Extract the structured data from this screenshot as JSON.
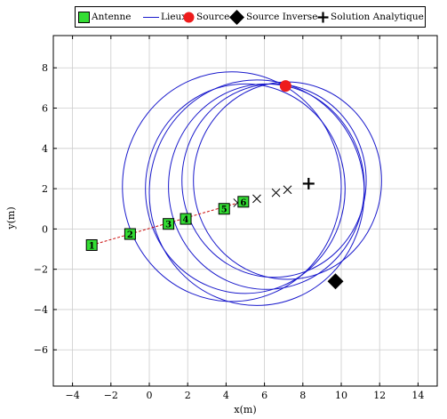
{
  "chart_data": {
    "type": "scatter",
    "title": "",
    "xlabel": "x(m)",
    "ylabel": "y(m)",
    "xlim": [
      -5.0,
      15.0
    ],
    "ylim": [
      -7.8,
      9.6
    ],
    "xticks": [
      -4,
      -2,
      0,
      2,
      4,
      6,
      8,
      10,
      12,
      14
    ],
    "yticks": [
      -6,
      -4,
      -2,
      0,
      2,
      4,
      6,
      8
    ],
    "xtick_labels": [
      "−4",
      "−2",
      "0",
      "2",
      "4",
      "6",
      "8",
      "10",
      "12",
      "14"
    ],
    "ytick_labels": [
      "−6",
      "−4",
      "−2",
      "0",
      "2",
      "4",
      "6",
      "8"
    ],
    "grid": true,
    "legend_position": "top",
    "legend": [
      "Antenne",
      "Lieux",
      "Source",
      "Source Inverse",
      "Solution Analytique"
    ],
    "colors": {
      "antenne_fill": "#33dd33",
      "lieux_line": "#1a1acc",
      "source": "#ee1c1c",
      "dashed_line": "#cc1111",
      "grid": "#cccccc"
    },
    "antennas": [
      {
        "label": "1",
        "x": -3.0,
        "y": -0.8
      },
      {
        "label": "2",
        "x": -1.0,
        "y": -0.25
      },
      {
        "label": "3",
        "x": 1.0,
        "y": 0.25
      },
      {
        "label": "4",
        "x": 1.9,
        "y": 0.5
      },
      {
        "label": "5",
        "x": 3.9,
        "y": 1.0
      },
      {
        "label": "6",
        "x": 4.9,
        "y": 1.35
      }
    ],
    "source": {
      "x": 7.1,
      "y": 7.1
    },
    "source_inverse": {
      "x": 9.7,
      "y": -2.6
    },
    "analytic_solution": {
      "x": 8.3,
      "y": 2.25
    },
    "cross_markers": [
      {
        "x": 4.6,
        "y": 1.3
      },
      {
        "x": 5.6,
        "y": 1.5
      },
      {
        "x": 6.6,
        "y": 1.8
      },
      {
        "x": 7.2,
        "y": 1.95
      }
    ],
    "dashed_line": {
      "from": [
        -3.0,
        -0.8
      ],
      "to": [
        5.0,
        1.4
      ]
    },
    "loci_circles": [
      {
        "cx": 4.3,
        "cy": 2.1,
        "r": 5.7
      },
      {
        "cx": 5.0,
        "cy": 2.0,
        "r": 5.2
      },
      {
        "cx": 5.6,
        "cy": 1.8,
        "r": 5.6
      },
      {
        "cx": 6.1,
        "cy": 2.1,
        "r": 5.1
      },
      {
        "cx": 6.5,
        "cy": 2.4,
        "r": 4.8
      },
      {
        "cx": 7.2,
        "cy": 2.4,
        "r": 4.9
      }
    ]
  }
}
